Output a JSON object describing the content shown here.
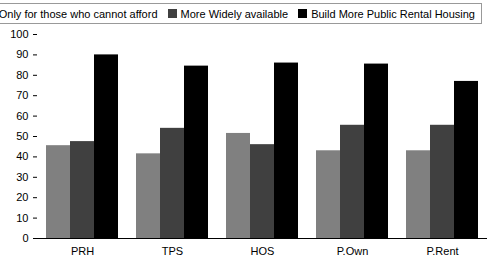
{
  "chart_data": {
    "type": "bar",
    "categories": [
      "PRH",
      "TPS",
      "HOS",
      "P.Own",
      "P.Rent"
    ],
    "series": [
      {
        "name": "Only for those who cannot afford",
        "color": "#808080",
        "values": [
          45.5,
          41.5,
          51.5,
          43,
          43
        ]
      },
      {
        "name": "More Widely available",
        "color": "#404040",
        "values": [
          47.5,
          54,
          46,
          55.5,
          55.5
        ]
      },
      {
        "name": "Build More Public Rental Housing",
        "color": "#000000",
        "values": [
          90,
          84.5,
          86,
          85.5,
          77
        ]
      }
    ],
    "ylim": [
      0,
      100
    ],
    "yticks": [
      0,
      10,
      20,
      30,
      40,
      50,
      60,
      70,
      80,
      90,
      100
    ],
    "grid": false,
    "legend": "top"
  }
}
